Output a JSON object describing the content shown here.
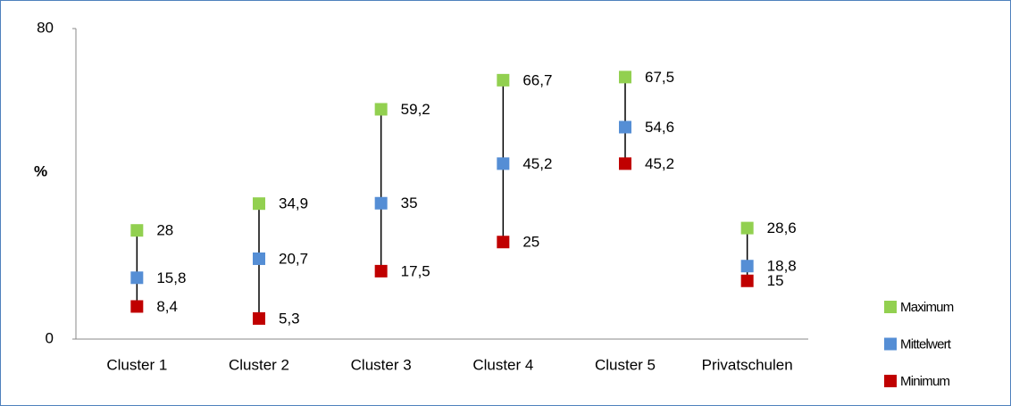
{
  "chart_data": {
    "type": "high-low",
    "y_label": "%",
    "categories": [
      "Cluster 1",
      "Cluster 2",
      "Cluster 3",
      "Cluster 4",
      "Cluster 5",
      "Privatschulen"
    ],
    "series": [
      {
        "name": "Maximum",
        "color": "#92d050",
        "values": [
          28,
          34.9,
          59.2,
          66.7,
          67.5,
          28.6
        ],
        "value_labels": [
          "28",
          "34,9",
          "59,2",
          "66,7",
          "67,5",
          "28,6"
        ]
      },
      {
        "name": "Mittelwert",
        "color": "#558ed5",
        "values": [
          15.8,
          20.7,
          35,
          45.2,
          54.6,
          18.8
        ],
        "value_labels": [
          "15,8",
          "20,7",
          "35",
          "45,2",
          "54,6",
          "18,8"
        ]
      },
      {
        "name": "Minimum",
        "color": "#c00000",
        "values": [
          8.4,
          5.3,
          17.5,
          25,
          45.2,
          15
        ],
        "value_labels": [
          "8,4",
          "5,3",
          "17,5",
          "25",
          "45,2",
          "15"
        ]
      }
    ],
    "ylim": [
      0,
      80
    ],
    "yticks": [
      0,
      80
    ],
    "grid": false,
    "legend": "right"
  }
}
